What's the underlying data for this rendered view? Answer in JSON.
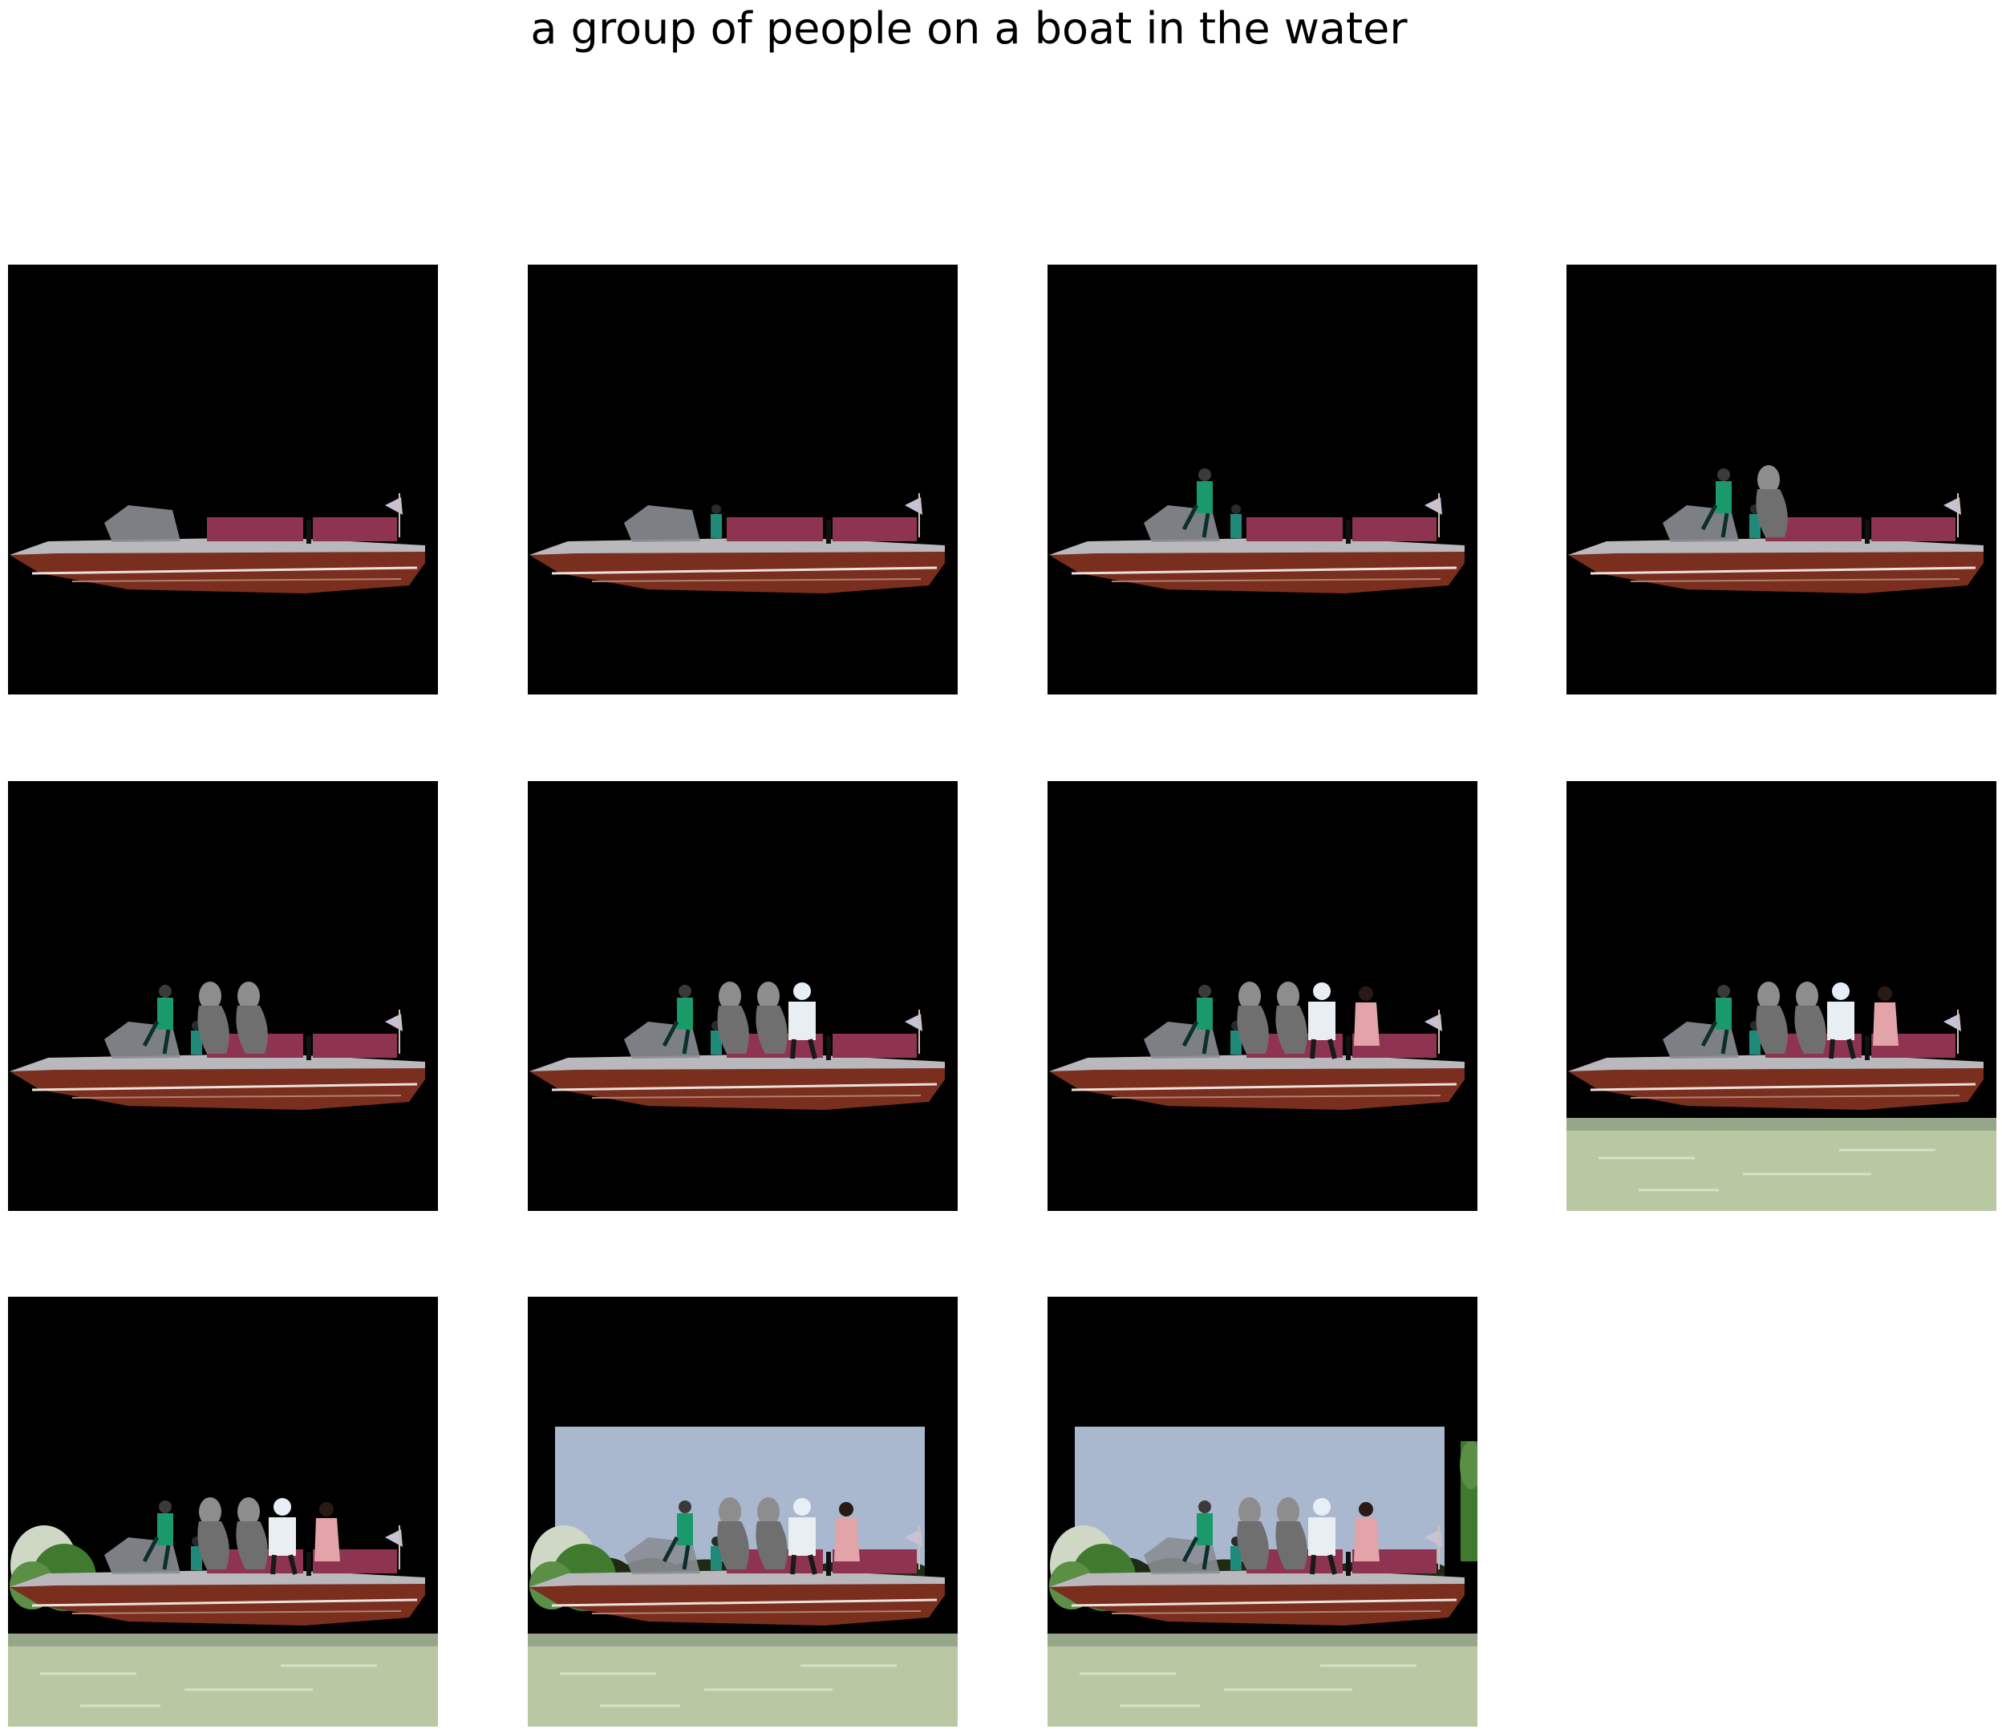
{
  "caption": "a group of people on a boat in the water",
  "colors": {
    "background": "#000000",
    "hull": "#7a2e1e",
    "deck": "#b9b9bd",
    "seats": "#8e3350",
    "water": "#b9c7a3",
    "sky": "#a9b8cf",
    "tree": "#3f7a2e"
  },
  "steps": [
    {
      "step": 1,
      "layers": [
        "boat"
      ]
    },
    {
      "step": 2,
      "layers": [
        "boat",
        "small-person"
      ]
    },
    {
      "step": 3,
      "layers": [
        "boat",
        "small-person",
        "person-green"
      ]
    },
    {
      "step": 4,
      "layers": [
        "boat",
        "small-person",
        "person-green",
        "gray-figure-1"
      ]
    },
    {
      "step": 5,
      "layers": [
        "boat",
        "small-person",
        "person-green",
        "gray-figure-1",
        "gray-figure-2"
      ]
    },
    {
      "step": 6,
      "layers": [
        "boat",
        "small-person",
        "person-green",
        "gray-figure-1",
        "gray-figure-2",
        "person-white-helmet"
      ]
    },
    {
      "step": 7,
      "layers": [
        "boat",
        "small-person",
        "person-green",
        "gray-figure-1",
        "gray-figure-2",
        "person-white-helmet",
        "person-pink"
      ]
    },
    {
      "step": 8,
      "layers": [
        "boat",
        "small-person",
        "person-green",
        "gray-figure-1",
        "gray-figure-2",
        "person-white-helmet",
        "person-pink",
        "water"
      ]
    },
    {
      "step": 9,
      "layers": [
        "boat",
        "small-person",
        "person-green",
        "gray-figure-1",
        "gray-figure-2",
        "person-white-helmet",
        "person-pink",
        "water",
        "tree-left"
      ]
    },
    {
      "step": 10,
      "layers": [
        "boat",
        "small-person",
        "person-green",
        "gray-figure-1",
        "gray-figure-2",
        "person-white-helmet",
        "person-pink",
        "water",
        "tree-left",
        "sky"
      ]
    },
    {
      "step": 11,
      "layers": [
        "boat",
        "small-person",
        "person-green",
        "gray-figure-1",
        "gray-figure-2",
        "person-white-helmet",
        "person-pink",
        "water",
        "tree-left",
        "sky",
        "tree-right"
      ]
    }
  ]
}
